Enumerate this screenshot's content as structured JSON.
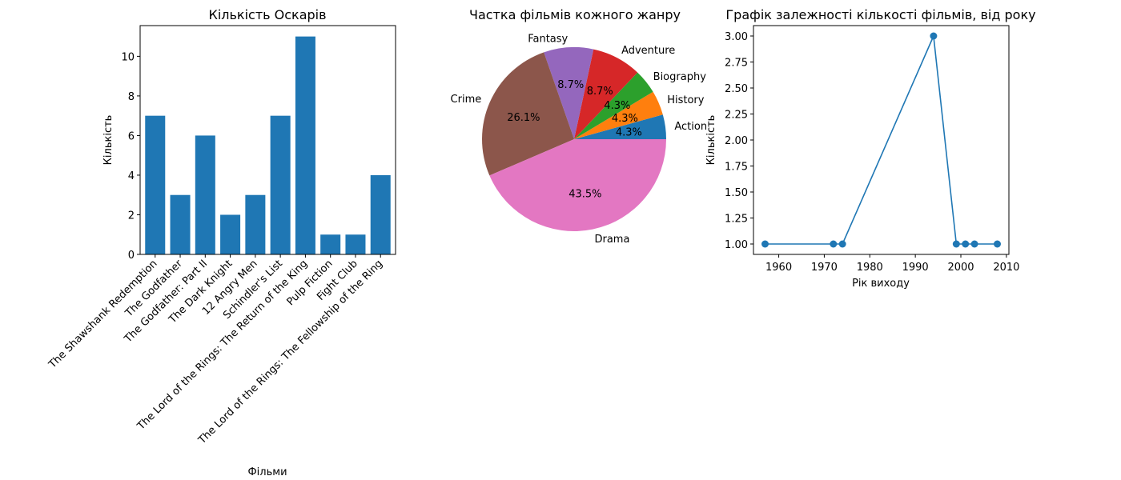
{
  "chart_data": [
    {
      "type": "bar",
      "title": "Кількість Оскарів",
      "xlabel": "Фільми",
      "ylabel": "Кількість",
      "categories": [
        "The Shawshank Redemption",
        "The Godfather",
        "The Godfather: Part II",
        "The Dark Knight",
        "12 Angry Men",
        "Schindler's List",
        "The Lord of the Rings: The Return of the King",
        "Pulp Fiction",
        "Fight Club",
        "The Lord of the Rings: The Fellowship of the Ring"
      ],
      "values": [
        7,
        3,
        6,
        2,
        3,
        7,
        11,
        1,
        1,
        4
      ],
      "yticks": [
        0,
        2,
        4,
        6,
        8,
        10
      ],
      "ylim": [
        0,
        11.55
      ],
      "color": "#1f77b4",
      "grid": false
    },
    {
      "type": "pie",
      "title": "Частка фільмів кожного жанру",
      "labels": [
        "Action",
        "History",
        "Biography",
        "Adventure",
        "Fantasy",
        "Crime",
        "Drama"
      ],
      "values": [
        4.3,
        4.3,
        4.3,
        8.7,
        8.7,
        26.1,
        43.5
      ],
      "autopct": [
        "4.3%",
        "4.3%",
        "4.3%",
        "8.7%",
        "8.7%",
        "26.1%",
        "43.5%"
      ],
      "colors": [
        "#1f77b4",
        "#ff7f0e",
        "#2ca02c",
        "#d62728",
        "#9467bd",
        "#8c564b",
        "#e377c2"
      ]
    },
    {
      "type": "line",
      "title": "Графік залежності кількості фільмів, від року",
      "xlabel": "Рік виходу",
      "ylabel": "Кількість",
      "x": [
        1957,
        1972,
        1974,
        1994,
        1999,
        2001,
        2003,
        2008
      ],
      "y": [
        1,
        1,
        1,
        3,
        1,
        1,
        1,
        1
      ],
      "xticks": [
        1960,
        1970,
        1980,
        1990,
        2000,
        2010
      ],
      "yticks": [
        "1.00",
        "1.25",
        "1.50",
        "1.75",
        "2.00",
        "2.25",
        "2.50",
        "2.75",
        "3.00"
      ],
      "xlim": [
        1954.45,
        2010.55
      ],
      "ylim": [
        0.9,
        3.1
      ],
      "color": "#1f77b4",
      "marker": "circle",
      "grid": false
    }
  ]
}
